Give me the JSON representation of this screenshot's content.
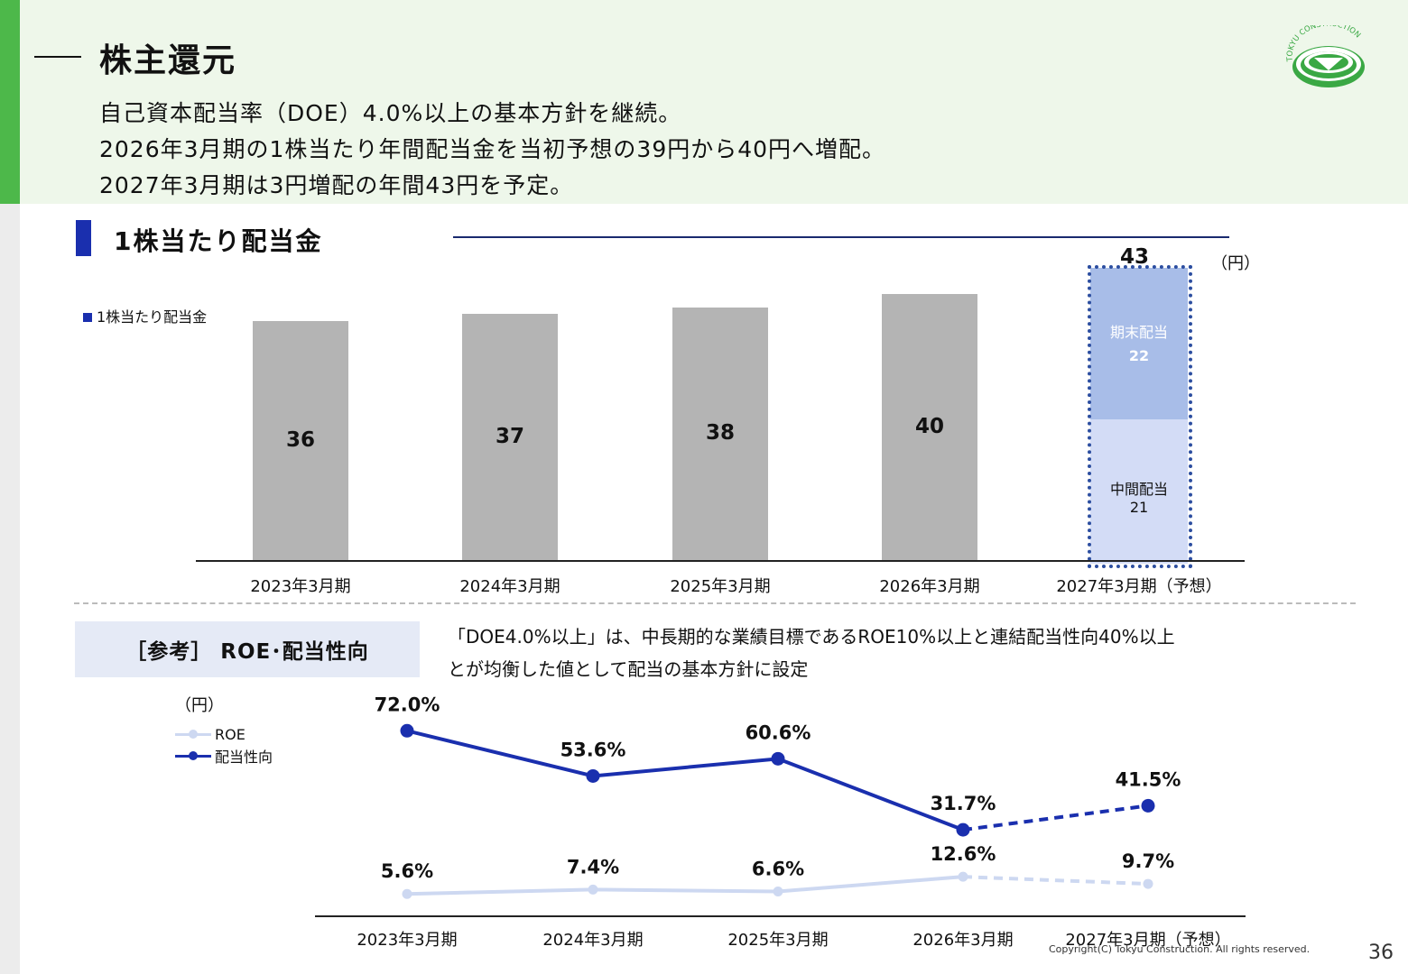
{
  "header": {
    "title": "株主還元",
    "lines": [
      "自己資本配当率（DOE）4.0%以上の基本方針を継続。",
      "2026年3月期の1株当たり年間配当金を当初予想の39円から40円へ増配。",
      "2027年3月期は3円増配の年間43円を予定。"
    ],
    "logo_text": "TOKYU CONSTRUCTION"
  },
  "section1": {
    "title": "1株当たり配当金",
    "unit": "（円）",
    "legend": "1株当たり配当金",
    "forecast": {
      "end_label": "期末配当",
      "interim_label": "中間配当"
    }
  },
  "section2": {
    "box_title": "［参考］ ROE･配当性向",
    "description": [
      "「DOE4.0%以上」は、中長期的な業績目標であるROE10%以上と連結配当性向40%以上",
      "とが均衡した値として配当の基本方針に設定"
    ],
    "unit": "（円）",
    "legend_roe": "ROE",
    "legend_payout": "配当性向"
  },
  "chart_data": [
    {
      "type": "bar",
      "title": "1株当たり配当金",
      "categories": [
        "2023年3月期",
        "2024年3月期",
        "2025年3月期",
        "2026年3月期",
        "2027年3月期（予想）"
      ],
      "values": [
        36,
        37,
        38,
        40,
        43
      ],
      "forecast_breakdown": {
        "interim": 21,
        "year_end": 22
      },
      "ylim": [
        0,
        45
      ],
      "colors": {
        "actual": "#b4b4b4",
        "interim": "#d3dcf6",
        "year_end": "#a8bde8"
      },
      "legend": "top-left"
    },
    {
      "type": "line",
      "categories": [
        "2023年3月期",
        "2024年3月期",
        "2025年3月期",
        "2026年3月期",
        "2027年3月期（予想）"
      ],
      "series": [
        {
          "name": "配当性向",
          "values": [
            72.0,
            53.6,
            60.6,
            31.7,
            41.5
          ],
          "labels": [
            "72.0%",
            "53.6%",
            "60.6%",
            "31.7%",
            "41.5%"
          ],
          "color": "#1a2fae"
        },
        {
          "name": "ROE",
          "values": [
            5.6,
            7.4,
            6.6,
            12.6,
            9.7
          ],
          "labels": [
            "5.6%",
            "7.4%",
            "6.6%",
            "12.6%",
            "9.7%"
          ],
          "color": "#cdd8f1"
        }
      ],
      "forecast_last_segment": "dashed",
      "legend": "top-left"
    }
  ],
  "footer": {
    "copyright": "Copyright(C) Tokyu Construction. All rights reserved.",
    "page": "36"
  }
}
